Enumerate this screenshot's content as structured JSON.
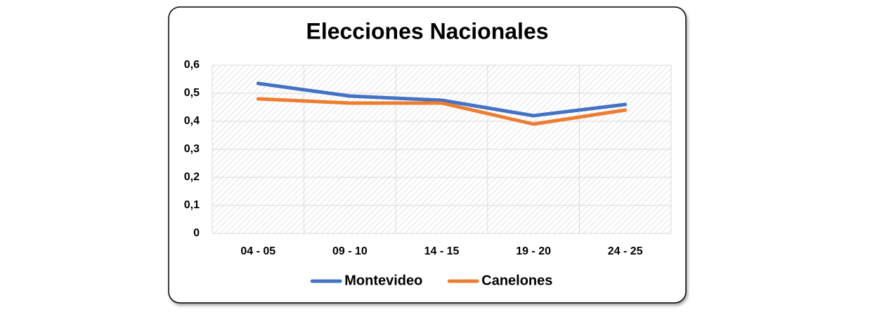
{
  "chart_data": {
    "type": "line",
    "title": "Elecciones Nacionales",
    "categories": [
      "04 - 05",
      "09 - 10",
      "14 - 15",
      "19 - 20",
      "24 - 25"
    ],
    "series": [
      {
        "name": "Montevideo",
        "color": "#4472c4",
        "values": [
          0.535,
          0.49,
          0.475,
          0.42,
          0.46
        ]
      },
      {
        "name": "Canelones",
        "color": "#ed7d31",
        "values": [
          0.48,
          0.465,
          0.465,
          0.39,
          0.44
        ]
      }
    ],
    "ylim": [
      0,
      0.6
    ],
    "yticks": [
      0,
      {
        "value": 0.1,
        "label": "0,1"
      },
      {
        "value": 0.2,
        "label": "0,2"
      },
      {
        "value": 0.3,
        "label": "0,3"
      },
      {
        "value": 0.4,
        "label": "0,4"
      },
      {
        "value": 0.5,
        "label": "0,5"
      },
      {
        "value": 0.6,
        "label": "0,6"
      }
    ],
    "grid": true,
    "legend": "bottom"
  }
}
